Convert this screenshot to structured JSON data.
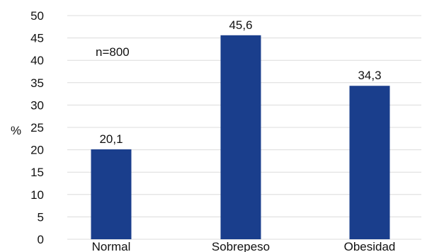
{
  "chart_data": {
    "type": "bar",
    "categories": [
      "Normal",
      "Sobrepeso",
      "Obesidad"
    ],
    "values": [
      20.1,
      45.6,
      34.3
    ],
    "value_labels": [
      "20,1",
      "45,6",
      "34,3"
    ],
    "ylabel": "%",
    "ylim": [
      0,
      50
    ],
    "yticks": [
      "0",
      "5",
      "10",
      "15",
      "20",
      "25",
      "30",
      "35",
      "40",
      "45",
      "50"
    ],
    "annotation": "n=800",
    "grid": true,
    "bar_color": "#1a3e8c"
  }
}
